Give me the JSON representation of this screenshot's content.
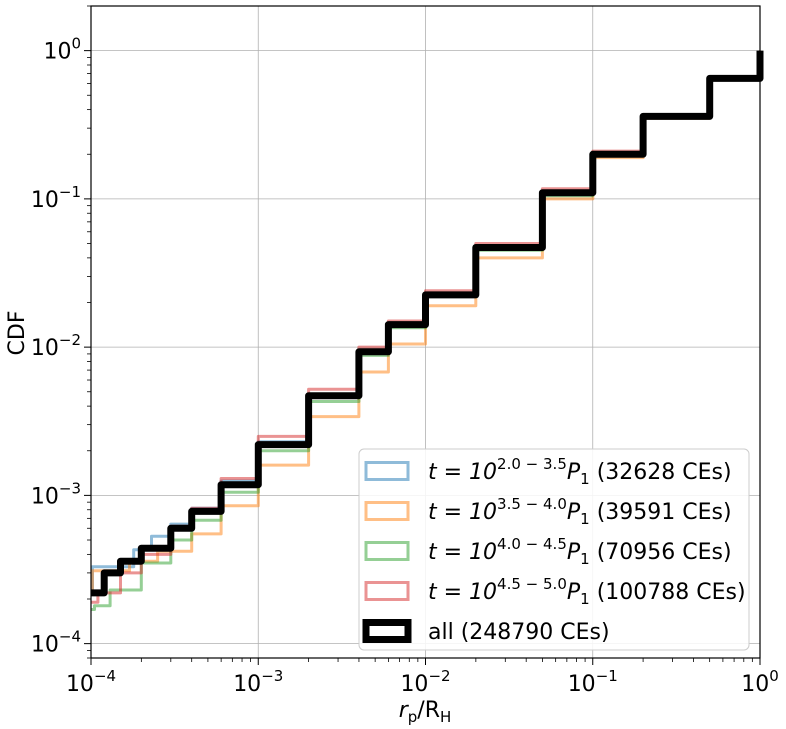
{
  "chart_data": {
    "type": "line",
    "step": true,
    "xscale": "log",
    "yscale": "log",
    "xlim": [
      0.0001,
      1
    ],
    "ylim": [
      8e-05,
      2
    ],
    "grid": true,
    "legend_position": "lower-right",
    "xlabel": {
      "main": "r",
      "main_sub": "p",
      "sep": "/R",
      "sep_sub": "H"
    },
    "ylabel": "CDF",
    "x_ticks": [
      {
        "value": 0.0001,
        "base": "10",
        "exp": "−4"
      },
      {
        "value": 0.001,
        "base": "10",
        "exp": "−3"
      },
      {
        "value": 0.01,
        "base": "10",
        "exp": "−2"
      },
      {
        "value": 0.1,
        "base": "10",
        "exp": "−1"
      },
      {
        "value": 1,
        "base": "10",
        "exp": "0"
      }
    ],
    "y_ticks": [
      {
        "value": 0.0001,
        "base": "10",
        "exp": "−4"
      },
      {
        "value": 0.001,
        "base": "10",
        "exp": "−3"
      },
      {
        "value": 0.01,
        "base": "10",
        "exp": "−2"
      },
      {
        "value": 0.1,
        "base": "10",
        "exp": "−1"
      },
      {
        "value": 1,
        "base": "10",
        "exp": "0"
      }
    ],
    "series": [
      {
        "label_prefix": "t = 10",
        "exp": "2.0 − 3.5",
        "label_mid": "P",
        "sub": "1",
        "label_suffix": " (32628 CEs)",
        "color": "#1f77b4",
        "alpha": 0.5,
        "width": 3,
        "points": [
          [
            0.0001,
            0.00022
          ],
          [
            0.000102,
            0.00033
          ],
          [
            0.00015,
            0.00033
          ],
          [
            0.00018,
            0.00043
          ],
          [
            0.00023,
            0.00053
          ],
          [
            0.0003,
            0.00064
          ],
          [
            0.0004,
            0.00082
          ],
          [
            0.0006,
            0.00125
          ],
          [
            0.001,
            0.0023
          ],
          [
            0.002,
            0.0048
          ],
          [
            0.004,
            0.0095
          ],
          [
            0.006,
            0.0145
          ],
          [
            0.01,
            0.023
          ],
          [
            0.02,
            0.046
          ],
          [
            0.05,
            0.11
          ],
          [
            0.1,
            0.2
          ],
          [
            0.2,
            0.36
          ],
          [
            0.5,
            0.65
          ],
          [
            1,
            1
          ]
        ]
      },
      {
        "label_prefix": "t = 10",
        "exp": "3.5 − 4.0",
        "label_mid": "P",
        "sub": "1",
        "label_suffix": " (39591 CEs)",
        "color": "#ff7f0e",
        "alpha": 0.5,
        "width": 3,
        "points": [
          [
            0.0001,
            0.00022
          ],
          [
            0.000102,
            0.00031
          ],
          [
            0.00015,
            0.00031
          ],
          [
            0.00017,
            0.00036
          ],
          [
            0.00025,
            0.00042
          ],
          [
            0.0004,
            0.00055
          ],
          [
            0.0006,
            0.00085
          ],
          [
            0.001,
            0.0016
          ],
          [
            0.002,
            0.0034
          ],
          [
            0.004,
            0.0068
          ],
          [
            0.006,
            0.0105
          ],
          [
            0.01,
            0.019
          ],
          [
            0.02,
            0.04
          ],
          [
            0.05,
            0.1
          ],
          [
            0.1,
            0.19
          ],
          [
            0.2,
            0.35
          ],
          [
            0.5,
            0.64
          ],
          [
            1,
            1
          ]
        ]
      },
      {
        "label_prefix": "t = 10",
        "exp": "4.0 − 4.5",
        "label_mid": "P",
        "sub": "1",
        "label_suffix": " (70956 CEs)",
        "color": "#2ca02c",
        "alpha": 0.5,
        "width": 3,
        "points": [
          [
            0.0001,
            0.00017
          ],
          [
            0.000105,
            0.00018
          ],
          [
            0.00013,
            0.00023
          ],
          [
            0.0002,
            0.00035
          ],
          [
            0.0003,
            0.0005
          ],
          [
            0.0004,
            0.00068
          ],
          [
            0.0006,
            0.00105
          ],
          [
            0.001,
            0.002
          ],
          [
            0.002,
            0.0043
          ],
          [
            0.004,
            0.0088
          ],
          [
            0.006,
            0.0135
          ],
          [
            0.01,
            0.022
          ],
          [
            0.02,
            0.045
          ],
          [
            0.05,
            0.105
          ],
          [
            0.1,
            0.195
          ],
          [
            0.2,
            0.355
          ],
          [
            0.5,
            0.645
          ],
          [
            1,
            1
          ]
        ]
      },
      {
        "label_prefix": "t = 10",
        "exp": "4.5 − 5.0",
        "label_mid": "P",
        "sub": "1",
        "label_suffix": " (100788 CEs)",
        "color": "#d62728",
        "alpha": 0.5,
        "width": 3,
        "points": [
          [
            0.0001,
            0.00019
          ],
          [
            0.00011,
            0.00022
          ],
          [
            0.00015,
            0.0003
          ],
          [
            0.0002,
            0.0004
          ],
          [
            0.0003,
            0.00062
          ],
          [
            0.0004,
            0.00082
          ],
          [
            0.0006,
            0.0013
          ],
          [
            0.001,
            0.0025
          ],
          [
            0.002,
            0.0052
          ],
          [
            0.004,
            0.01
          ],
          [
            0.006,
            0.015
          ],
          [
            0.01,
            0.024
          ],
          [
            0.02,
            0.05
          ],
          [
            0.05,
            0.117
          ],
          [
            0.1,
            0.21
          ],
          [
            0.2,
            0.37
          ],
          [
            0.5,
            0.66
          ],
          [
            1,
            1
          ]
        ]
      },
      {
        "label_prefix": "",
        "exp": "",
        "label_mid": "",
        "sub": "",
        "label_suffix": "all (248790 CEs)",
        "color": "#000000",
        "alpha": 1,
        "width": 7,
        "points": [
          [
            0.0001,
            0.00022
          ],
          [
            0.00012,
            0.0003
          ],
          [
            0.00015,
            0.00036
          ],
          [
            0.0002,
            0.00044
          ],
          [
            0.0003,
            0.0006
          ],
          [
            0.0004,
            0.00078
          ],
          [
            0.0006,
            0.00118
          ],
          [
            0.001,
            0.0022
          ],
          [
            0.002,
            0.0047
          ],
          [
            0.004,
            0.0093
          ],
          [
            0.006,
            0.0142
          ],
          [
            0.01,
            0.0225
          ],
          [
            0.02,
            0.047
          ],
          [
            0.05,
            0.11
          ],
          [
            0.1,
            0.2
          ],
          [
            0.2,
            0.36
          ],
          [
            0.5,
            0.65
          ],
          [
            1,
            1
          ]
        ]
      }
    ]
  }
}
